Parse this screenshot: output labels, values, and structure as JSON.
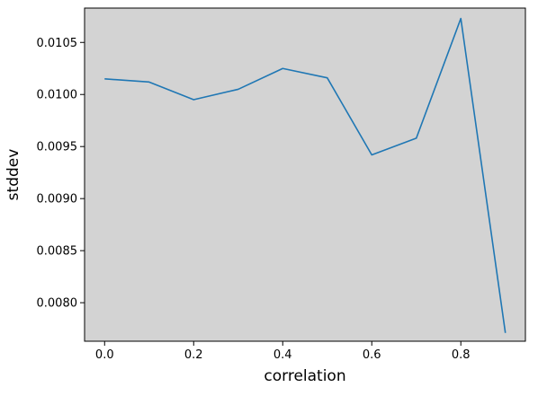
{
  "chart_data": {
    "type": "line",
    "title": "",
    "xlabel": "correlation",
    "ylabel": "stddev",
    "xlim": [
      -0.045,
      0.945
    ],
    "ylim": [
      0.00763,
      0.01083
    ],
    "x_ticks": [
      0.0,
      0.2,
      0.4,
      0.6,
      0.8
    ],
    "x_tick_labels": [
      "0.0",
      "0.2",
      "0.4",
      "0.6",
      "0.8"
    ],
    "y_ticks": [
      0.008,
      0.0085,
      0.009,
      0.0095,
      0.01,
      0.0105
    ],
    "y_tick_labels": [
      "0.0080",
      "0.0085",
      "0.0090",
      "0.0095",
      "0.0100",
      "0.0105"
    ],
    "grid": false,
    "background_color": "#d3d3d3",
    "series": [
      {
        "color": "#1f77b4",
        "x": [
          0.0,
          0.1,
          0.2,
          0.3,
          0.4,
          0.5,
          0.6,
          0.7,
          0.8,
          0.9
        ],
        "y": [
          0.01015,
          0.01012,
          0.00995,
          0.01005,
          0.01025,
          0.01016,
          0.00942,
          0.00958,
          0.01073,
          0.00771
        ]
      }
    ]
  }
}
